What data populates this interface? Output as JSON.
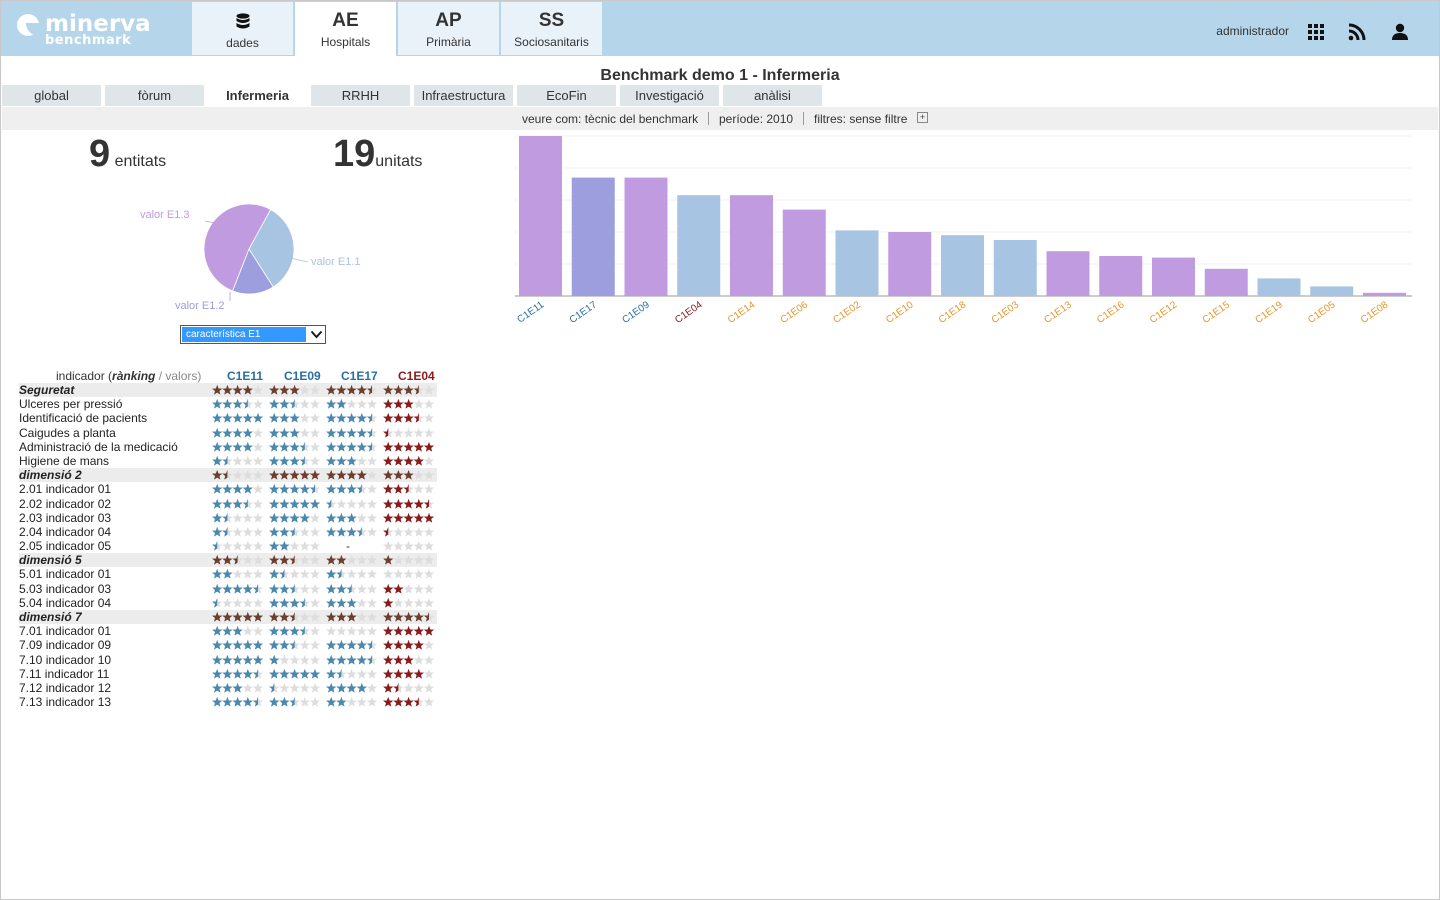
{
  "header": {
    "logo": {
      "name": "minerva",
      "sub": "benchmark"
    },
    "modules": [
      {
        "abbr": "",
        "label": "dades",
        "icon": "database-icon"
      },
      {
        "abbr": "AE",
        "label": "Hospitals"
      },
      {
        "abbr": "AP",
        "label": "Primària"
      },
      {
        "abbr": "SS",
        "label": "Sociosanitaris"
      }
    ],
    "active_module": 1,
    "user": "administrador",
    "icons": [
      "apps-grid-icon",
      "rss-icon",
      "user-icon"
    ]
  },
  "page_title": "Benchmark demo 1  - Infermeria",
  "subtabs": [
    "global",
    "fòrum",
    "Infermeria",
    "RRHH",
    "Infraestructura",
    "EcoFin",
    "Investigació",
    "anàlisi"
  ],
  "active_subtab": 2,
  "filters": {
    "view_as": "veure com: tècnic del benchmark",
    "period": "període: 2010",
    "filters": "filtres: sense filtre",
    "plus": "+"
  },
  "counts": {
    "entities_num": "9",
    "entities_label": "entitats",
    "units_num": "19",
    "units_label": "unitats"
  },
  "pie_chart": {
    "type": "pie",
    "slices": [
      {
        "label": "valor E1.1",
        "value": 33,
        "color": "#a7c4e2"
      },
      {
        "label": "valor E1.2",
        "value": 15,
        "color": "#9d9ede"
      },
      {
        "label": "valor E1.3",
        "value": 52,
        "color": "#c09be0"
      }
    ]
  },
  "select": {
    "value": "característica E1"
  },
  "chart_data": {
    "type": "bar",
    "categories": [
      "C1E11",
      "C1E17",
      "C1E09",
      "C1E04",
      "C1E14",
      "C1E06",
      "C1E02",
      "C1E10",
      "C1E18",
      "C1E03",
      "C1E13",
      "C1E16",
      "C1E12",
      "C1E15",
      "C1E19",
      "C1E05",
      "C1E08"
    ],
    "values": [
      100,
      74,
      74,
      63,
      63,
      54,
      41,
      40,
      38,
      35,
      28,
      25,
      24,
      17,
      11,
      6,
      2
    ],
    "bar_colors": [
      "#c09be0",
      "#9d9ede",
      "#c09be0",
      "#a7c4e2",
      "#c09be0",
      "#c09be0",
      "#a7c4e2",
      "#c09be0",
      "#a7c4e2",
      "#a7c4e2",
      "#c09be0",
      "#c09be0",
      "#c09be0",
      "#c09be0",
      "#a7c4e2",
      "#a7c4e2",
      "#c09be0"
    ],
    "label_colors": [
      "#2a6fa0",
      "#2a6fa0",
      "#2a6fa0",
      "#8b1a1a",
      "#e8962b",
      "#e8962b",
      "#e8962b",
      "#e8962b",
      "#e8962b",
      "#e8962b",
      "#e8962b",
      "#e8962b",
      "#e8962b",
      "#e8962b",
      "#e8962b",
      "#e8962b",
      "#e8962b"
    ],
    "ylim": [
      0,
      100
    ],
    "grid": true,
    "title": "",
    "xlabel": "",
    "ylabel": ""
  },
  "ranking_table": {
    "header_label": "indicador (",
    "header_bold": "rànking",
    "header_values": " / valors)",
    "entities": [
      {
        "name": "C1E11",
        "color": "#2a6fa0"
      },
      {
        "name": "C1E09",
        "color": "#2a6fa0"
      },
      {
        "name": "C1E17",
        "color": "#2a6fa0"
      },
      {
        "name": "C1E04",
        "color": "#8b1a1a"
      }
    ],
    "colors": {
      "blue": "#4a88ad",
      "brown": "#6b3e2e",
      "dark_red": "#8b1a1a",
      "empty": "#dddddd"
    },
    "rows": [
      {
        "label": "Seguretat",
        "dim": true,
        "ratings": [
          4,
          3,
          4.5,
          3.5
        ]
      },
      {
        "label": "Ulceres per pressió",
        "ratings": [
          3.5,
          2.5,
          2,
          3
        ]
      },
      {
        "label": "Identificació de pacients",
        "ratings": [
          5,
          3,
          4.5,
          3.5
        ]
      },
      {
        "label": "Caigudes a planta",
        "ratings": [
          4,
          3,
          4.5,
          0.5
        ]
      },
      {
        "label": "Administració de la medicació",
        "ratings": [
          4,
          3.5,
          4.5,
          5
        ]
      },
      {
        "label": "Higiene de mans",
        "ratings": [
          1.5,
          3.5,
          3,
          4
        ]
      },
      {
        "label": "dimensió 2",
        "dim": true,
        "ratings": [
          1.5,
          5,
          4,
          3
        ]
      },
      {
        "label": "2.01 indicador 01",
        "ratings": [
          4,
          4.5,
          3.5,
          2.5
        ]
      },
      {
        "label": "2.02 indicador 02",
        "ratings": [
          3.5,
          5,
          0.5,
          4.5
        ]
      },
      {
        "label": "2.03 indicador 03",
        "ratings": [
          1.5,
          4,
          3,
          5
        ]
      },
      {
        "label": "2.04 indicador 04",
        "ratings": [
          1.5,
          2.5,
          3.5,
          0.5
        ]
      },
      {
        "label": "2.05 indicador 05",
        "ratings": [
          0.5,
          2,
          null,
          0
        ]
      },
      {
        "label": "dimensió 5",
        "dim": true,
        "ratings": [
          2.5,
          2.5,
          2,
          1
        ]
      },
      {
        "label": "5.01 indicador 01",
        "ratings": [
          2,
          1.5,
          1.5,
          0
        ]
      },
      {
        "label": "5.03 indicador 03",
        "ratings": [
          4.5,
          2.5,
          2.5,
          2
        ]
      },
      {
        "label": "5.04 indicador 04",
        "ratings": [
          0.5,
          3.5,
          3,
          1
        ]
      },
      {
        "label": "dimensió 7",
        "dim": true,
        "ratings": [
          5,
          2.5,
          3,
          4.5
        ]
      },
      {
        "label": "7.01 indicador 01",
        "ratings": [
          3,
          3.5,
          0,
          5
        ]
      },
      {
        "label": "7.09 indicador 09",
        "ratings": [
          5,
          2.5,
          4.5,
          4
        ]
      },
      {
        "label": "7.10 indicador 10",
        "ratings": [
          5,
          1,
          4.5,
          3
        ]
      },
      {
        "label": "7.11 indicador 11",
        "ratings": [
          4.5,
          5,
          1.5,
          4
        ]
      },
      {
        "label": "7.12 indicador 12",
        "ratings": [
          3,
          0.5,
          4,
          1.5
        ]
      },
      {
        "label": "7.13 indicador 13",
        "ratings": [
          4.5,
          2.5,
          2,
          3.5
        ]
      }
    ]
  }
}
